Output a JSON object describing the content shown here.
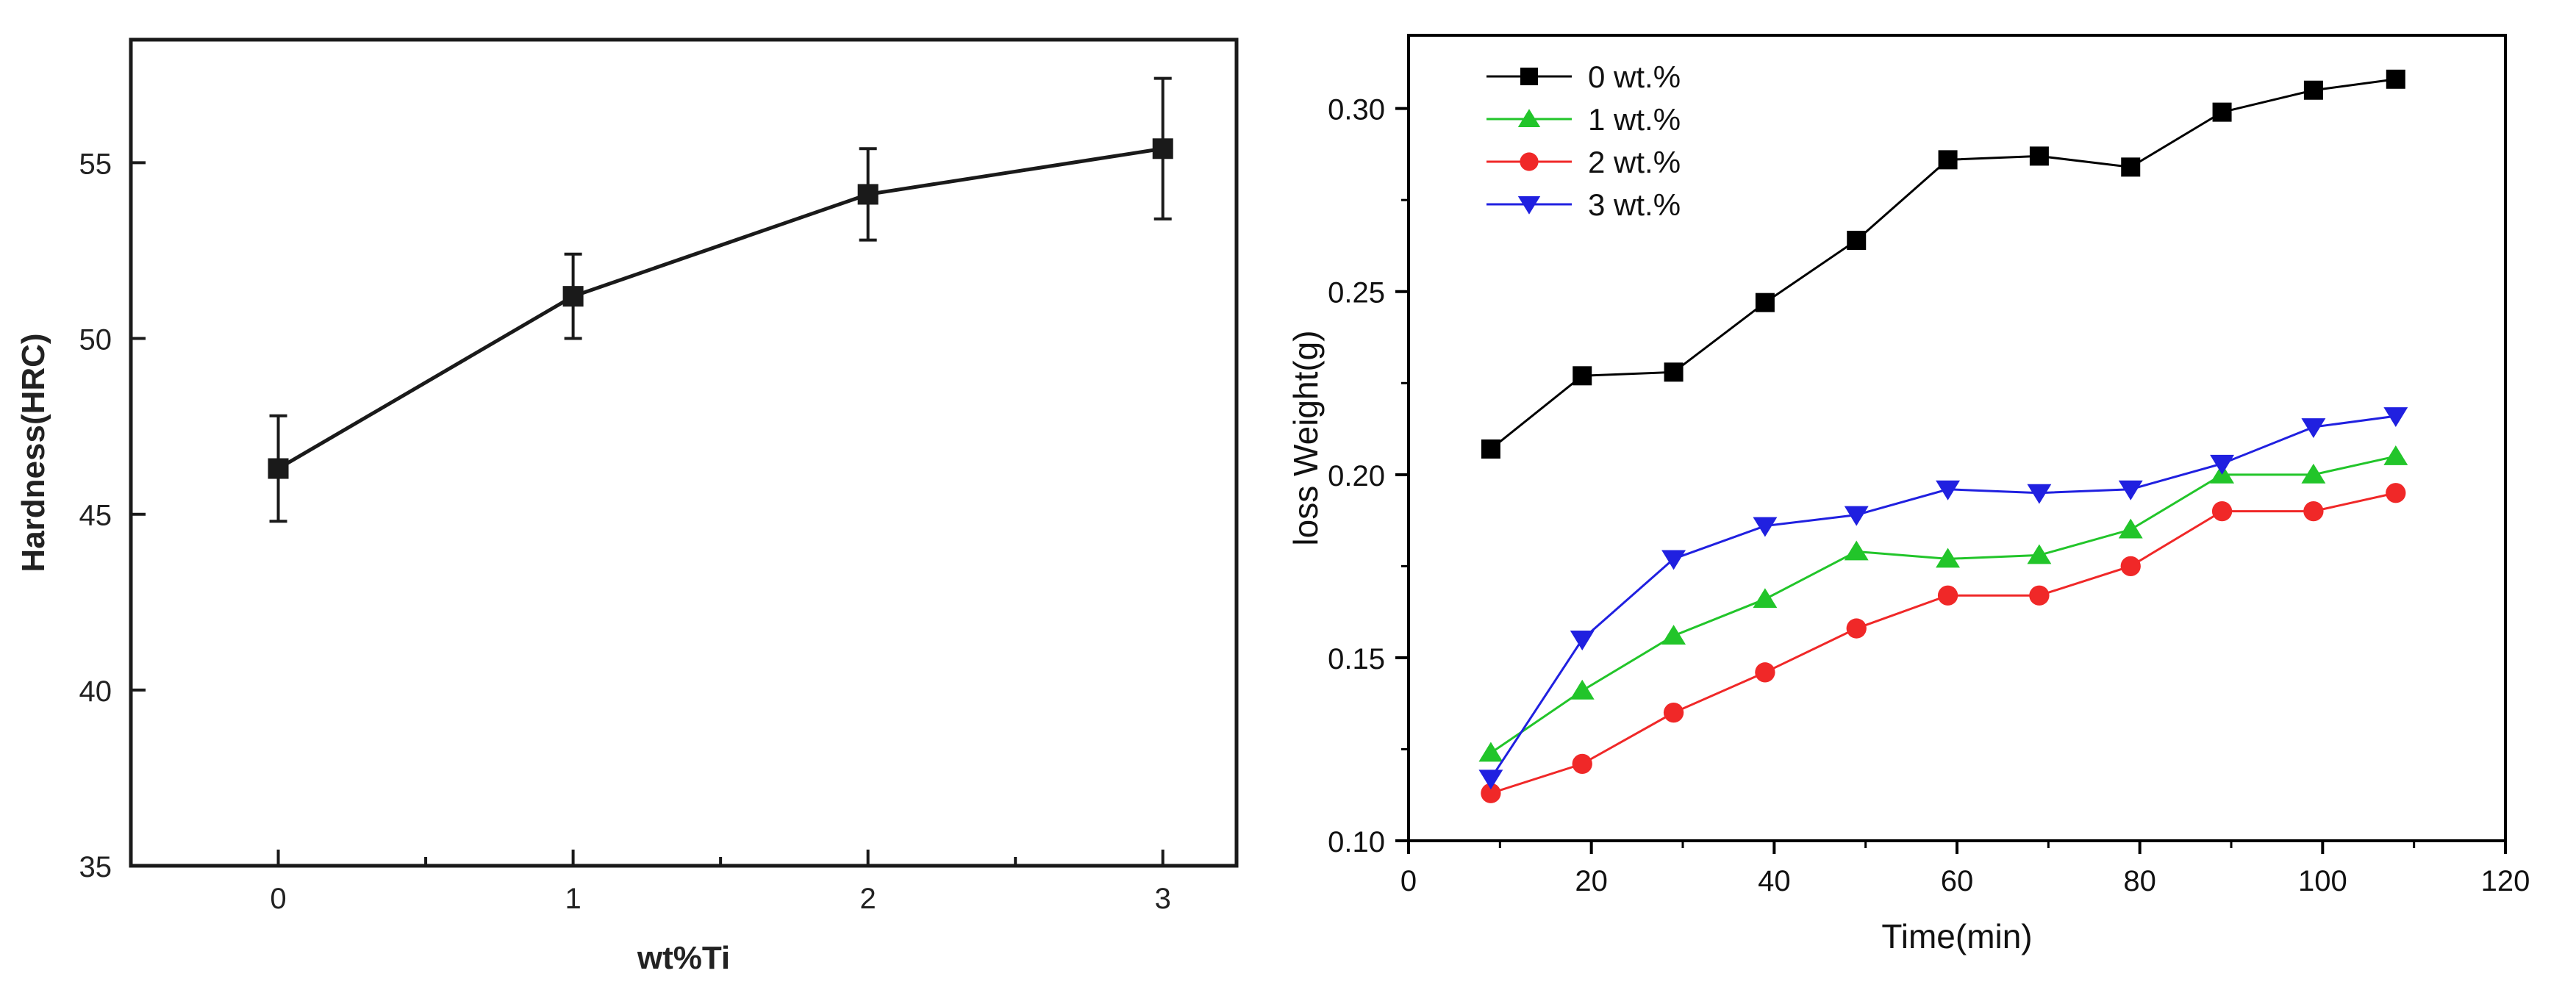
{
  "chart_data": [
    {
      "type": "line",
      "title": "",
      "xlabel": "wt%Ti",
      "ylabel": "Hardness(HRC)",
      "xlim": [
        -0.5,
        3.25
      ],
      "ylim": [
        35,
        58.5
      ],
      "xticks": [
        0,
        1,
        2,
        3
      ],
      "yticks": [
        35,
        40,
        45,
        50,
        55
      ],
      "grid": false,
      "series": [
        {
          "name": "Hardness",
          "color": "#1a1a1a",
          "marker": "square",
          "x": [
            0,
            1,
            2,
            3
          ],
          "y": [
            46.3,
            51.2,
            54.1,
            55.4
          ],
          "error": [
            1.5,
            1.2,
            1.3,
            2.0
          ]
        }
      ]
    },
    {
      "type": "line",
      "title": "",
      "xlabel": "Time(min)",
      "ylabel": "loss Weight(g)",
      "xlim": [
        0,
        120
      ],
      "ylim": [
        0.1,
        0.32
      ],
      "xticks": [
        0,
        20,
        40,
        60,
        80,
        100,
        120
      ],
      "yticks": [
        0.1,
        0.15,
        0.2,
        0.25,
        0.3
      ],
      "ytick_labels": [
        "0.10",
        "0.15",
        "0.20",
        "0.25",
        "0.30"
      ],
      "grid": false,
      "legend": "top-left",
      "x": [
        9,
        19,
        29,
        39,
        49,
        59,
        69,
        79,
        89,
        99,
        108
      ],
      "series": [
        {
          "name": "0 wt.%",
          "color": "#000000",
          "marker": "square",
          "y": [
            0.207,
            0.227,
            0.228,
            0.247,
            0.264,
            0.286,
            0.287,
            0.284,
            0.299,
            0.305,
            0.308
          ]
        },
        {
          "name": "1 wt.%",
          "color": "#22c52a",
          "marker": "triangle-up",
          "y": [
            0.124,
            0.141,
            0.156,
            0.166,
            0.179,
            0.177,
            0.178,
            0.185,
            0.2,
            0.2,
            0.205
          ]
        },
        {
          "name": "2 wt.%",
          "color": "#f02828",
          "marker": "circle",
          "y": [
            0.113,
            0.121,
            0.135,
            0.146,
            0.158,
            0.167,
            0.167,
            0.175,
            0.19,
            0.19,
            0.195
          ]
        },
        {
          "name": "3 wt.%",
          "color": "#2020e0",
          "marker": "triangle-down",
          "y": [
            0.117,
            0.155,
            0.177,
            0.186,
            0.189,
            0.196,
            0.195,
            0.196,
            0.203,
            0.213,
            0.216
          ]
        }
      ]
    }
  ]
}
